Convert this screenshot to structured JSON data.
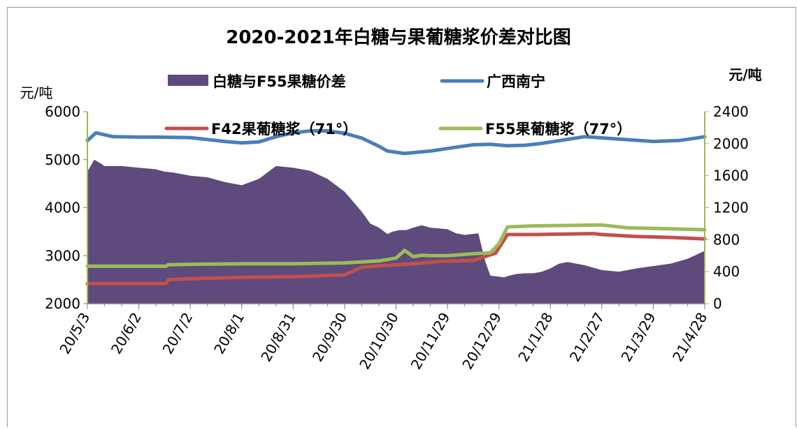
{
  "chart_data": {
    "type": "area+line",
    "title": "2020-2021年白糖与果葡糖浆价差对比图",
    "left_axis_unit": "元/吨",
    "right_axis_unit": "元/吨",
    "left_ylim": [
      2000,
      6000
    ],
    "left_ticks": [
      "2000",
      "3000",
      "4000",
      "5000",
      "6000"
    ],
    "right_ylim": [
      0,
      2400
    ],
    "right_ticks": [
      "0",
      "400",
      "800",
      "1200",
      "1600",
      "2000",
      "2400"
    ],
    "x_ticks": [
      "20/5/3",
      "20/6/2",
      "20/7/2",
      "20/8/1",
      "20/8/31",
      "20/9/30",
      "20/10/30",
      "20/11/29",
      "20/12/29",
      "21/1/28",
      "21/2/27",
      "21/3/29",
      "21/4/28"
    ],
    "legend_placement": "top",
    "grid": false,
    "colors": {
      "spread": "#5e4a7c",
      "nanning": "#4a7ebb",
      "f42": "#c0504d",
      "f55": "#9bbb59",
      "axis_right": "#9bbb59"
    },
    "series": [
      {
        "name": "白糖与F55果糖价差",
        "axis": "right",
        "kind": "area",
        "color": "#5e4a7c",
        "x": [
          0,
          4,
          8,
          10,
          15,
          20,
          30,
          40,
          45,
          50,
          60,
          70,
          80,
          90,
          100,
          110,
          120,
          130,
          140,
          150,
          160,
          165,
          170,
          175,
          178,
          182,
          186,
          190,
          195,
          200,
          205,
          210,
          215,
          220,
          228,
          232,
          235,
          239,
          243,
          246,
          250,
          255,
          260,
          265,
          270,
          275,
          280,
          290,
          300,
          310,
          320,
          330,
          340,
          350,
          360
        ],
        "y": [
          1650,
          1800,
          1750,
          1720,
          1720,
          1720,
          1700,
          1680,
          1650,
          1640,
          1600,
          1580,
          1520,
          1480,
          1560,
          1720,
          1700,
          1660,
          1560,
          1400,
          1150,
          1000,
          950,
          870,
          900,
          920,
          920,
          950,
          980,
          950,
          940,
          930,
          880,
          860,
          880,
          530,
          350,
          340,
          330,
          350,
          370,
          380,
          380,
          400,
          440,
          500,
          520,
          480,
          420,
          400,
          440,
          470,
          500,
          560,
          660
        ]
      },
      {
        "name": "广西南宁",
        "axis": "left",
        "kind": "line",
        "color": "#4a7ebb",
        "x": [
          0,
          5,
          15,
          30,
          40,
          60,
          70,
          80,
          90,
          100,
          110,
          120,
          130,
          140,
          150,
          160,
          170,
          175,
          185,
          200,
          215,
          225,
          235,
          245,
          255,
          265,
          290,
          310,
          330,
          345,
          355,
          360
        ],
        "y": [
          5400,
          5560,
          5480,
          5470,
          5470,
          5460,
          5420,
          5380,
          5350,
          5370,
          5480,
          5560,
          5600,
          5600,
          5550,
          5450,
          5280,
          5180,
          5130,
          5180,
          5260,
          5310,
          5320,
          5290,
          5300,
          5340,
          5480,
          5430,
          5380,
          5400,
          5450,
          5480
        ]
      },
      {
        "name": "F42果葡糖浆（71°）",
        "axis": "left",
        "kind": "line",
        "color": "#c0504d",
        "x": [
          0,
          46,
          47,
          60,
          90,
          120,
          150,
          155,
          160,
          175,
          190,
          205,
          225,
          238,
          245,
          260,
          295,
          300,
          320,
          340,
          360
        ],
        "y": [
          2420,
          2420,
          2500,
          2520,
          2550,
          2560,
          2600,
          2680,
          2760,
          2800,
          2830,
          2880,
          2900,
          3050,
          3440,
          3440,
          3460,
          3440,
          3400,
          3380,
          3350
        ]
      },
      {
        "name": "F55果葡糖浆（77°）",
        "axis": "left",
        "kind": "line",
        "color": "#9bbb59",
        "x": [
          0,
          46,
          47,
          60,
          90,
          120,
          150,
          170,
          180,
          185,
          190,
          195,
          200,
          210,
          225,
          235,
          240,
          245,
          260,
          300,
          315,
          340,
          360
        ],
        "y": [
          2780,
          2780,
          2810,
          2820,
          2830,
          2830,
          2850,
          2890,
          2950,
          3110,
          2980,
          3010,
          3000,
          3000,
          3040,
          3060,
          3250,
          3600,
          3620,
          3640,
          3580,
          3560,
          3540
        ]
      }
    ]
  }
}
